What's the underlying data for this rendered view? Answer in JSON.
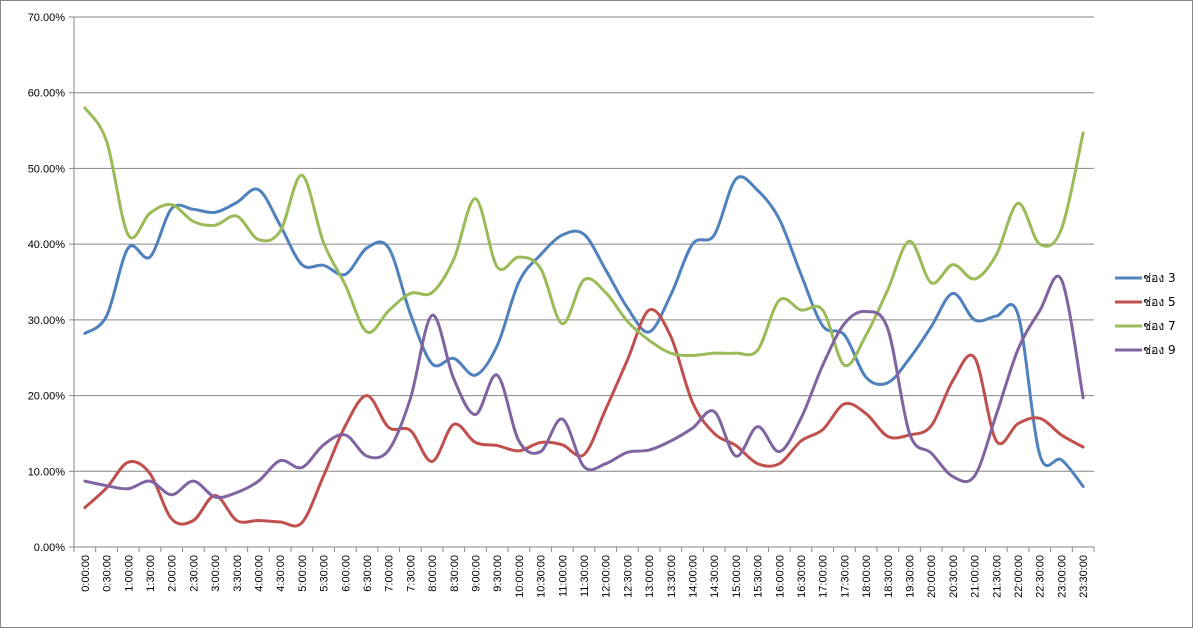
{
  "chart_data": {
    "type": "line",
    "title": "",
    "xlabel": "",
    "ylabel": "",
    "ylim": [
      0,
      70
    ],
    "y_ticks": [
      "0.00%",
      "10.00%",
      "20.00%",
      "30.00%",
      "40.00%",
      "50.00%",
      "60.00%",
      "70.00%"
    ],
    "grid": true,
    "legend_position": "right",
    "categories": [
      "0:00:00",
      "0:30:00",
      "1:00:00",
      "1:30:00",
      "2:00:00",
      "2:30:00",
      "3:00:00",
      "3:30:00",
      "4:00:00",
      "4:30:00",
      "5:00:00",
      "5:30:00",
      "6:00:00",
      "6:30:00",
      "7:00:00",
      "7:30:00",
      "8:00:00",
      "8:30:00",
      "9:00:00",
      "9:30:00",
      "10:00:00",
      "10:30:00",
      "11:00:00",
      "11:30:00",
      "12:00:00",
      "12:30:00",
      "13:00:00",
      "13:30:00",
      "14:00:00",
      "14:30:00",
      "15:00:00",
      "15:30:00",
      "16:00:00",
      "16:30:00",
      "17:00:00",
      "17:30:00",
      "18:00:00",
      "18:30:00",
      "19:30:00",
      "20:00:00",
      "20:30:00",
      "21:00:00",
      "21:30:00",
      "22:00:00",
      "22:30:00",
      "23:00:00",
      "23:30:00"
    ],
    "series": [
      {
        "name": "ช่อง 3",
        "color": "#4f81bd",
        "values": [
          28.2,
          30.5,
          39.5,
          38.3,
          44.7,
          44.6,
          44.2,
          45.5,
          47.2,
          42.5,
          37.3,
          37.2,
          36.0,
          39.5,
          39.5,
          30.8,
          24.2,
          24.9,
          22.7,
          26.6,
          35.0,
          38.6,
          41.2,
          41.3,
          36.6,
          31.6,
          28.4,
          33.3,
          40.0,
          41.2,
          48.6,
          47.1,
          43.3,
          36.0,
          29.2,
          28.0,
          22.4,
          21.7,
          24.9,
          29.1,
          33.5,
          30.0,
          30.5,
          30.7,
          12.2,
          11.5,
          8.0
        ]
      },
      {
        "name": "ช่อง 5",
        "color": "#c0504d",
        "values": [
          5.2,
          7.8,
          11.2,
          9.7,
          3.7,
          3.5,
          6.8,
          3.5,
          3.5,
          3.3,
          3.2,
          9.4,
          16.0,
          20.0,
          15.8,
          15.4,
          11.3,
          16.2,
          13.8,
          13.4,
          12.7,
          13.8,
          13.5,
          12.2,
          18.2,
          24.7,
          31.3,
          27.8,
          19.1,
          15.0,
          13.4,
          11.0,
          11.0,
          14.0,
          15.5,
          18.9,
          17.6,
          14.6,
          14.8,
          16.0,
          22.0,
          25.0,
          14.0,
          16.3,
          17.0,
          14.8,
          13.2
        ]
      },
      {
        "name": "ช่อง 7",
        "color": "#9bbb59",
        "values": [
          58.0,
          53.6,
          41.2,
          44.1,
          45.2,
          43.0,
          42.5,
          43.7,
          40.6,
          41.7,
          49.1,
          40.2,
          34.6,
          28.4,
          31.2,
          33.5,
          33.6,
          38.0,
          46.0,
          37.0,
          38.3,
          36.8,
          29.5,
          35.3,
          33.6,
          29.8,
          27.3,
          25.6,
          25.3,
          25.6,
          25.6,
          26.0,
          32.6,
          31.3,
          31.3,
          24.0,
          28.0,
          34.0,
          40.4,
          34.9,
          37.3,
          35.4,
          38.6,
          45.4,
          40.0,
          42.0,
          54.7
        ]
      },
      {
        "name": "ช่อง 9",
        "color": "#8064a2",
        "values": [
          8.7,
          8.1,
          7.7,
          8.7,
          6.9,
          8.7,
          6.6,
          7.2,
          8.7,
          11.4,
          10.5,
          13.5,
          14.8,
          12.0,
          12.8,
          19.6,
          30.6,
          22.2,
          17.5,
          22.7,
          14.0,
          12.6,
          16.9,
          10.6,
          11.0,
          12.5,
          12.8,
          14.0,
          15.7,
          17.9,
          12.0,
          15.9,
          12.6,
          17.0,
          24.0,
          29.5,
          31.1,
          28.8,
          15.0,
          12.4,
          9.3,
          9.4,
          17.5,
          26.1,
          31.2,
          35.3,
          19.7
        ]
      }
    ]
  }
}
